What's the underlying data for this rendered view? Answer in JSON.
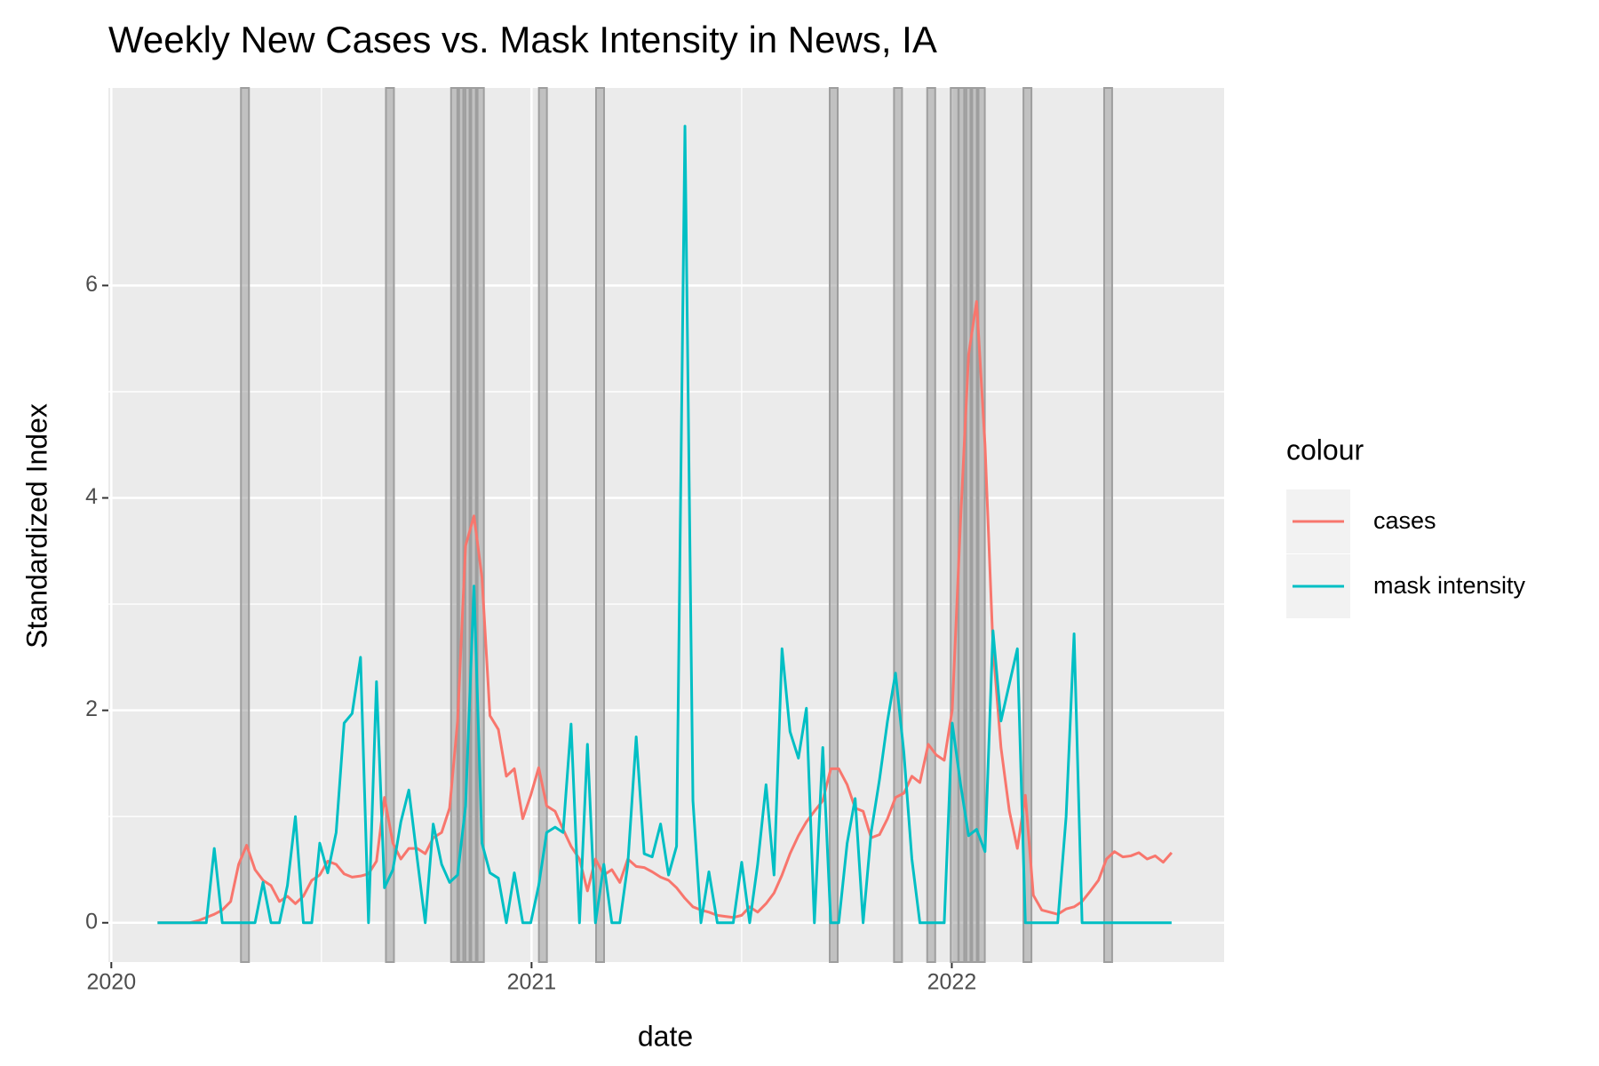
{
  "chart_data": {
    "type": "line",
    "title": "Weekly New Cases vs. Mask Intensity in News, IA",
    "x_label": "date",
    "y_label": "Standardized Index",
    "legend_title": "colour",
    "legend_position": "right",
    "grid": true,
    "xlim": [
      2019.993,
      2022.648
    ],
    "xticks": [
      2020,
      2021,
      2022
    ],
    "ylim": [
      -0.37,
      7.86
    ],
    "yticks": [
      0,
      2,
      4,
      6
    ],
    "x": [
      2020.11,
      2020.129,
      2020.149,
      2020.168,
      2020.187,
      2020.207,
      2020.226,
      2020.245,
      2020.264,
      2020.284,
      2020.303,
      2020.322,
      2020.342,
      2020.361,
      2020.38,
      2020.4,
      2020.419,
      2020.438,
      2020.457,
      2020.477,
      2020.496,
      2020.515,
      2020.535,
      2020.554,
      2020.573,
      2020.593,
      2020.612,
      2020.631,
      2020.65,
      2020.67,
      2020.689,
      2020.708,
      2020.728,
      2020.747,
      2020.766,
      2020.786,
      2020.805,
      2020.824,
      2020.843,
      2020.863,
      2020.882,
      2020.901,
      2020.921,
      2020.94,
      2020.959,
      2020.979,
      2020.998,
      2021.017,
      2021.036,
      2021.056,
      2021.075,
      2021.094,
      2021.114,
      2021.133,
      2021.152,
      2021.172,
      2021.191,
      2021.21,
      2021.229,
      2021.249,
      2021.268,
      2021.287,
      2021.307,
      2021.326,
      2021.345,
      2021.365,
      2021.384,
      2021.403,
      2021.422,
      2021.442,
      2021.461,
      2021.48,
      2021.5,
      2021.519,
      2021.538,
      2021.558,
      2021.577,
      2021.596,
      2021.615,
      2021.635,
      2021.654,
      2021.673,
      2021.693,
      2021.712,
      2021.731,
      2021.751,
      2021.77,
      2021.789,
      2021.808,
      2021.828,
      2021.847,
      2021.866,
      2021.886,
      2021.905,
      2021.924,
      2021.944,
      2021.963,
      2021.982,
      2022.001,
      2022.021,
      2022.04,
      2022.059,
      2022.079,
      2022.098,
      2022.117,
      2022.137,
      2022.156,
      2022.175,
      2022.194,
      2022.214,
      2022.233,
      2022.252,
      2022.272,
      2022.291,
      2022.31,
      2022.33,
      2022.349,
      2022.368,
      2022.387,
      2022.407,
      2022.426,
      2022.445,
      2022.465,
      2022.484,
      2022.503,
      2022.523
    ],
    "series": [
      {
        "name": "cases",
        "color": "#F8766D",
        "values": [
          0,
          0,
          0,
          0,
          0,
          0.02,
          0.05,
          0.08,
          0.12,
          0.2,
          0.55,
          0.73,
          0.5,
          0.4,
          0.35,
          0.2,
          0.25,
          0.18,
          0.25,
          0.4,
          0.45,
          0.58,
          0.55,
          0.46,
          0.43,
          0.44,
          0.46,
          0.58,
          1.18,
          0.75,
          0.6,
          0.7,
          0.7,
          0.65,
          0.8,
          0.85,
          1.08,
          1.9,
          3.55,
          3.83,
          3.25,
          1.95,
          1.82,
          1.38,
          1.45,
          0.98,
          1.2,
          1.46,
          1.1,
          1.05,
          0.88,
          0.72,
          0.6,
          0.3,
          0.6,
          0.45,
          0.5,
          0.38,
          0.6,
          0.53,
          0.52,
          0.48,
          0.43,
          0.4,
          0.33,
          0.23,
          0.15,
          0.12,
          0.1,
          0.07,
          0.06,
          0.05,
          0.07,
          0.15,
          0.1,
          0.18,
          0.28,
          0.45,
          0.65,
          0.82,
          0.95,
          1.05,
          1.15,
          1.45,
          1.45,
          1.3,
          1.08,
          1.05,
          0.8,
          0.83,
          0.98,
          1.18,
          1.22,
          1.38,
          1.32,
          1.68,
          1.58,
          1.53,
          2.0,
          3.8,
          5.35,
          5.85,
          4.5,
          2.6,
          1.65,
          1.05,
          0.7,
          1.2,
          0.26,
          0.12,
          0.1,
          0.08,
          0.13,
          0.15,
          0.2,
          0.3,
          0.4,
          0.6,
          0.67,
          0.62,
          0.63,
          0.66,
          0.6,
          0.63,
          0.57,
          0.66
        ]
      },
      {
        "name": "mask intensity",
        "color": "#00BFC4",
        "values": [
          0,
          0,
          0,
          0,
          0,
          0,
          0,
          0.7,
          0,
          0,
          0,
          0,
          0,
          0.38,
          0,
          0,
          0.35,
          1.0,
          0,
          0,
          0.75,
          0.47,
          0.85,
          1.88,
          1.97,
          2.5,
          0,
          2.27,
          0.33,
          0.5,
          0.95,
          1.25,
          0.6,
          0,
          0.93,
          0.55,
          0.38,
          0.45,
          1.1,
          3.17,
          0.75,
          0.47,
          0.42,
          0,
          0.47,
          0,
          0,
          0.35,
          0.85,
          0.9,
          0.85,
          1.87,
          0,
          1.68,
          0,
          0.55,
          0,
          0,
          0.55,
          1.75,
          0.65,
          0.62,
          0.93,
          0.45,
          0.72,
          7.5,
          1.15,
          0,
          0.48,
          0,
          0,
          0,
          0.57,
          0,
          0.55,
          1.3,
          0.45,
          2.58,
          1.8,
          1.55,
          2.02,
          0,
          1.65,
          0,
          0,
          0.75,
          1.17,
          0,
          0.85,
          1.35,
          1.9,
          2.35,
          1.6,
          0.6,
          0,
          0,
          0,
          0,
          1.88,
          1.3,
          0.82,
          0.88,
          0.67,
          2.75,
          1.9,
          2.25,
          2.58,
          0,
          0,
          0,
          0,
          0,
          1.0,
          2.72,
          0,
          0,
          0,
          0,
          0,
          0,
          0,
          0,
          0,
          0,
          0,
          0
        ]
      }
    ],
    "bands": [
      2020.318,
      2020.663,
      2020.818,
      2020.833,
      2020.847,
      2020.862,
      2020.877,
      2021.027,
      2021.163,
      2021.719,
      2021.872,
      2021.951,
      2022.007,
      2022.025,
      2022.039,
      2022.054,
      2022.069,
      2022.18,
      2022.372
    ],
    "band_color": "#9e9e9e"
  }
}
